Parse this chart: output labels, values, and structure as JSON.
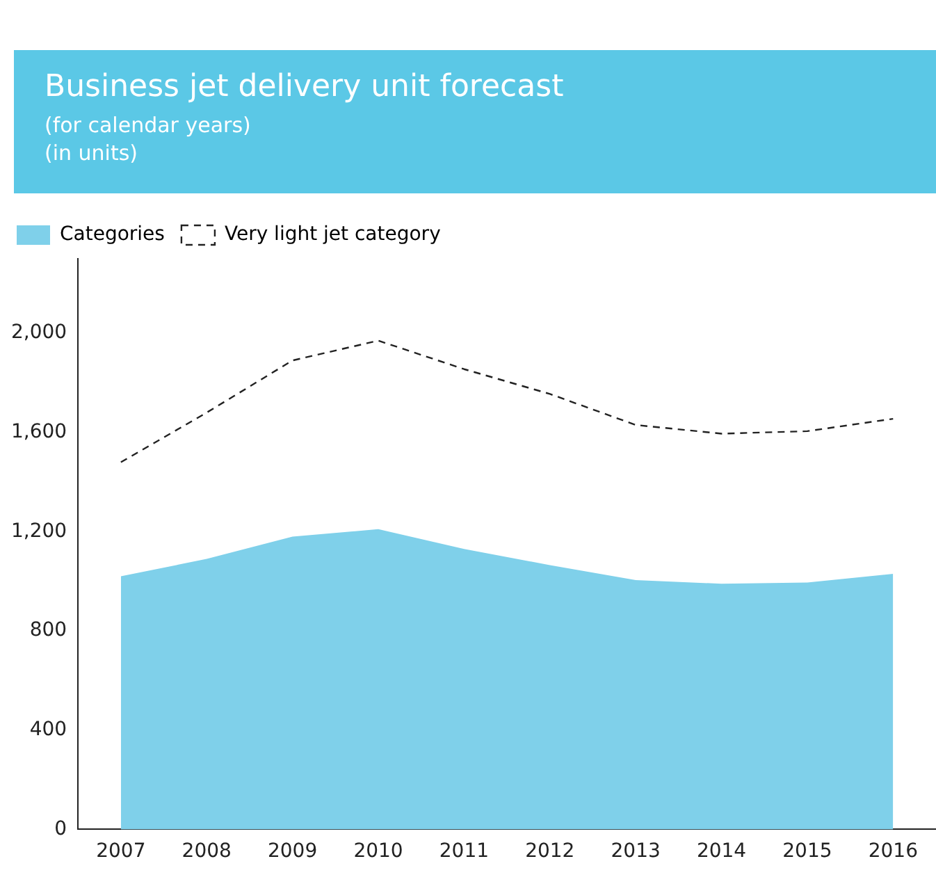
{
  "chart_data": {
    "type": "area",
    "title": "Business jet delivery unit forecast",
    "subtitle": "(for calendar years)\n(in units)",
    "categories": [
      "2007",
      "2008",
      "2009",
      "2010",
      "2011",
      "2012",
      "2013",
      "2014",
      "2015",
      "2016"
    ],
    "series": [
      {
        "name": "Categories",
        "color": "#7fd0ea",
        "values": [
          1020,
          1090,
          1180,
          1210,
          1130,
          1065,
          1005,
          990,
          995,
          1030
        ]
      },
      {
        "name": "Very light jet category",
        "type": "line",
        "color": "#222222",
        "line_style": "dashed",
        "values": [
          1480,
          1680,
          1890,
          1970,
          1855,
          1755,
          1630,
          1595,
          1605,
          1655
        ]
      }
    ],
    "ylim": [
      0,
      2300
    ],
    "yticks": [
      0,
      400,
      800,
      {
        "value": 1200,
        "label": "1,200"
      },
      {
        "value": 1600,
        "label": "1,600"
      },
      {
        "value": 2000,
        "label": "2,000"
      }
    ],
    "grid": false,
    "legend": "top left",
    "marker": "none"
  }
}
